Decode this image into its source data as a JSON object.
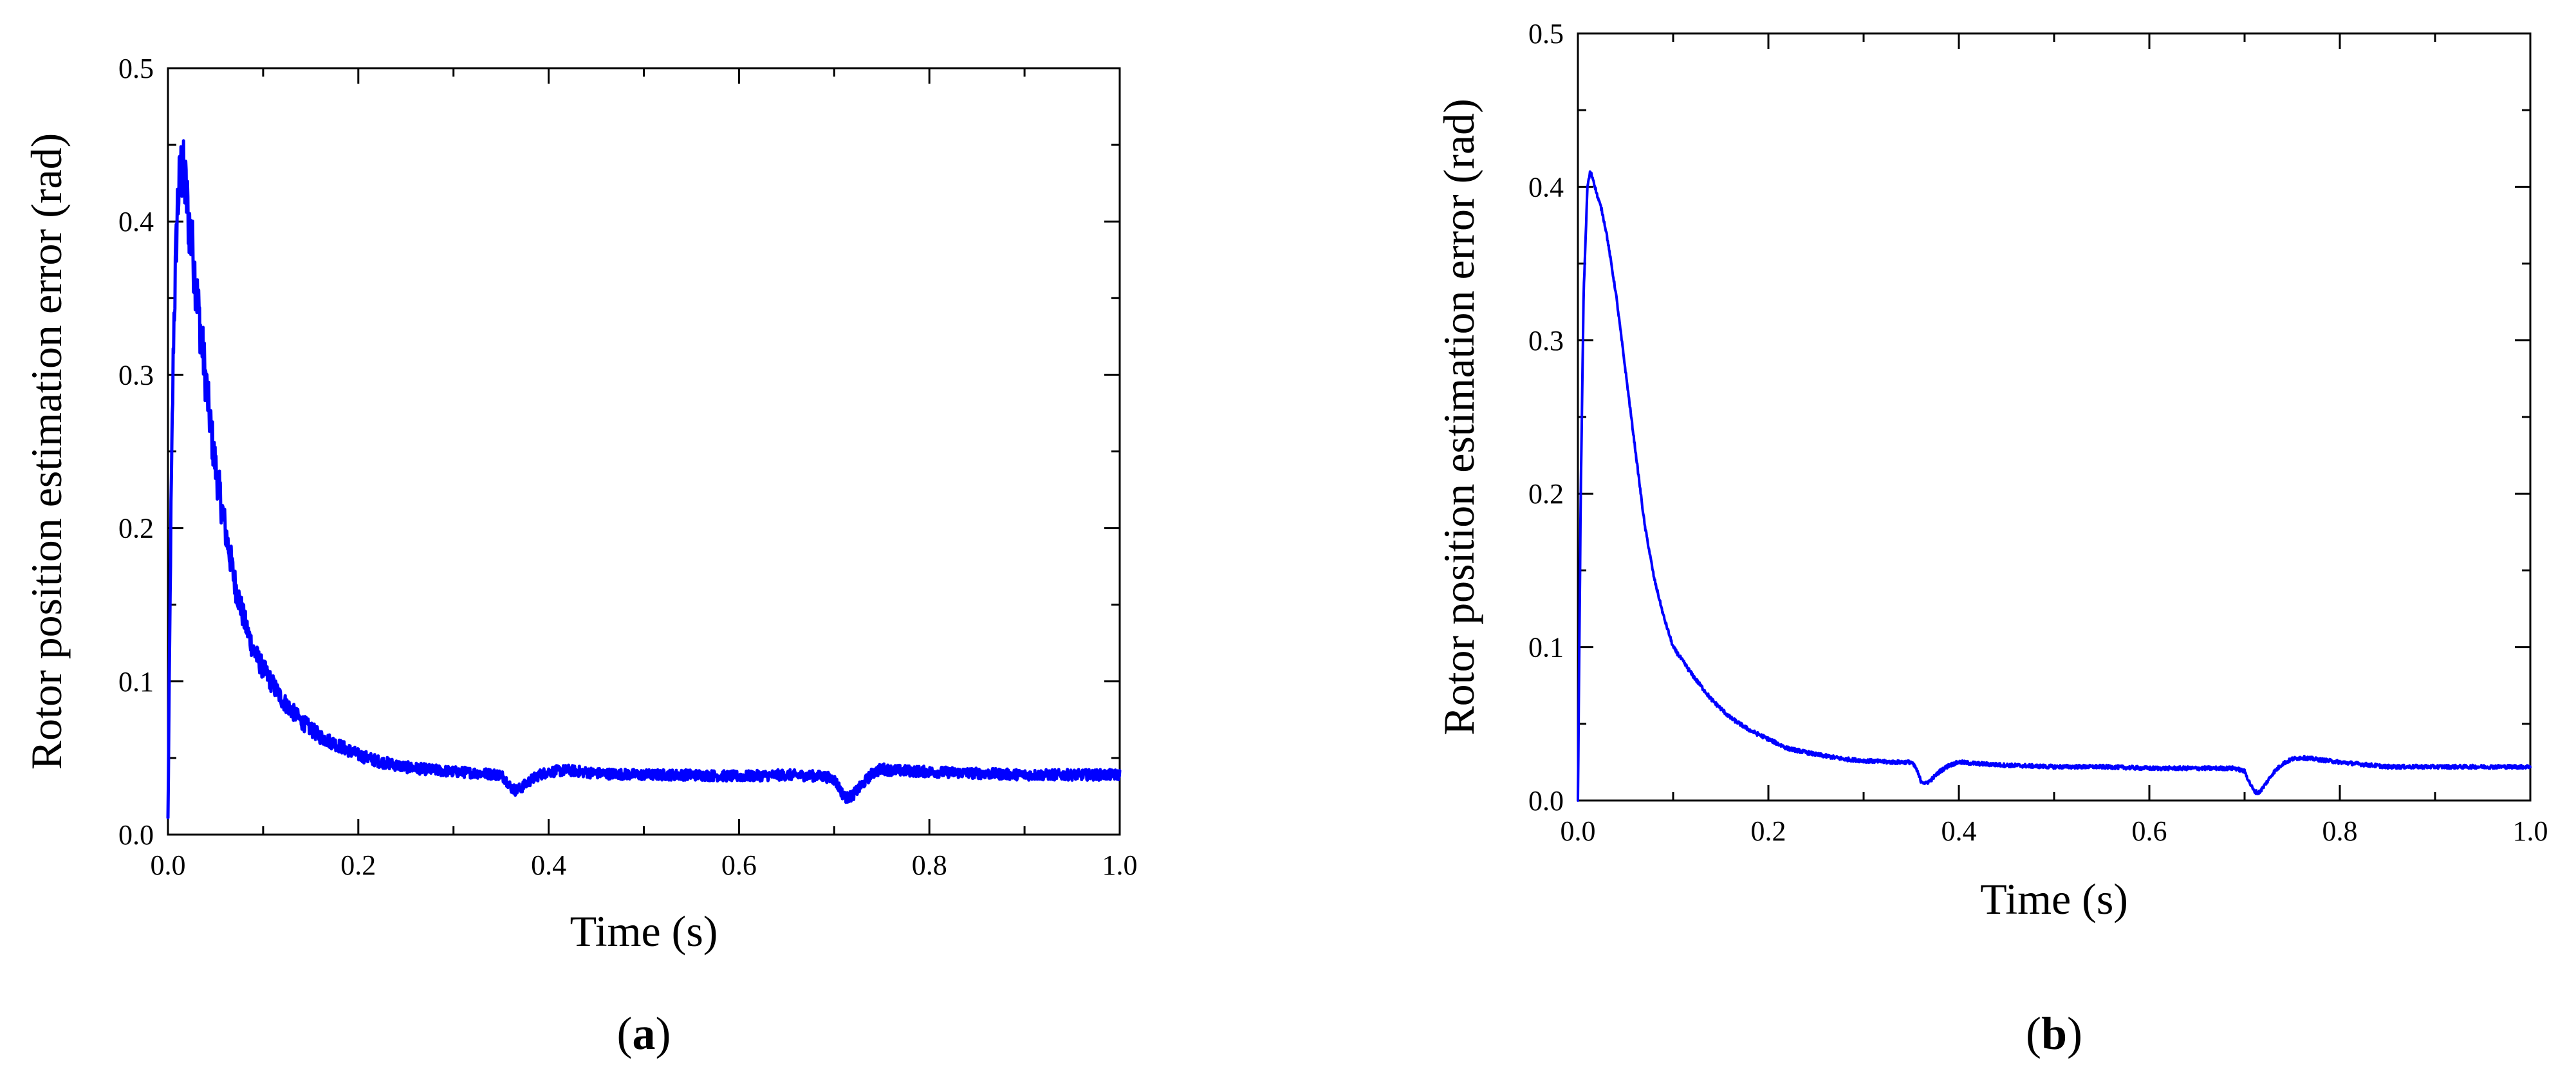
{
  "chart_data": [
    {
      "type": "line",
      "panel_label": "a",
      "xlabel": "Time (s)",
      "ylabel": "Rotor position estimation error (rad)",
      "xlim": [
        0,
        1.0
      ],
      "ylim": [
        0,
        0.5
      ],
      "xticks": [
        "0.0",
        "0.2",
        "0.4",
        "0.6",
        "0.8",
        "1.0"
      ],
      "yticks": [
        "0.0",
        "0.1",
        "0.2",
        "0.3",
        "0.4",
        "0.5"
      ],
      "grid": false,
      "line_color": "#0000ff",
      "noise_level": "high",
      "series": [
        {
          "x": [
            0,
            0.003,
            0.006,
            0.01,
            0.014,
            0.018,
            0.022,
            0.026,
            0.03,
            0.035,
            0.04,
            0.045,
            0.05,
            0.06,
            0.07,
            0.08,
            0.09,
            0.1,
            0.12,
            0.14,
            0.16,
            0.18,
            0.2,
            0.22,
            0.25,
            0.28,
            0.3,
            0.33,
            0.35,
            0.355,
            0.36,
            0.365,
            0.37,
            0.38,
            0.39,
            0.4,
            0.42,
            0.45,
            0.5,
            0.55,
            0.6,
            0.65,
            0.69,
            0.7,
            0.705,
            0.71,
            0.715,
            0.72,
            0.73,
            0.74,
            0.75,
            0.76,
            0.8,
            0.85,
            0.9,
            0.95,
            1.0
          ],
          "y": [
            0.01,
            0.2,
            0.33,
            0.41,
            0.435,
            0.425,
            0.4,
            0.38,
            0.355,
            0.325,
            0.295,
            0.265,
            0.24,
            0.2,
            0.165,
            0.14,
            0.12,
            0.108,
            0.088,
            0.074,
            0.064,
            0.058,
            0.052,
            0.048,
            0.044,
            0.042,
            0.041,
            0.04,
            0.039,
            0.036,
            0.031,
            0.029,
            0.03,
            0.035,
            0.039,
            0.041,
            0.042,
            0.04,
            0.039,
            0.039,
            0.038,
            0.039,
            0.038,
            0.036,
            0.031,
            0.025,
            0.024,
            0.026,
            0.033,
            0.04,
            0.043,
            0.042,
            0.041,
            0.04,
            0.039,
            0.039,
            0.039
          ]
        }
      ]
    },
    {
      "type": "line",
      "panel_label": "b",
      "xlabel": "Time (s)",
      "ylabel": "Rotor position estimation error (rad)",
      "xlim": [
        0,
        1.0
      ],
      "ylim": [
        0,
        0.5
      ],
      "xticks": [
        "0.0",
        "0.2",
        "0.4",
        "0.6",
        "0.8",
        "1.0"
      ],
      "yticks": [
        "0.0",
        "0.1",
        "0.2",
        "0.3",
        "0.4",
        "0.5"
      ],
      "grid": false,
      "line_color": "#0000ff",
      "noise_level": "low",
      "series": [
        {
          "x": [
            0,
            0.003,
            0.006,
            0.01,
            0.013,
            0.016,
            0.02,
            0.025,
            0.03,
            0.035,
            0.04,
            0.045,
            0.05,
            0.06,
            0.07,
            0.08,
            0.09,
            0.1,
            0.12,
            0.14,
            0.16,
            0.18,
            0.2,
            0.22,
            0.25,
            0.28,
            0.3,
            0.33,
            0.35,
            0.355,
            0.36,
            0.365,
            0.37,
            0.38,
            0.39,
            0.4,
            0.42,
            0.45,
            0.5,
            0.55,
            0.6,
            0.65,
            0.69,
            0.7,
            0.705,
            0.71,
            0.715,
            0.72,
            0.73,
            0.74,
            0.75,
            0.76,
            0.8,
            0.85,
            0.9,
            0.95,
            1.0
          ],
          "y": [
            0.0,
            0.2,
            0.33,
            0.4,
            0.41,
            0.405,
            0.395,
            0.385,
            0.37,
            0.35,
            0.33,
            0.305,
            0.28,
            0.23,
            0.18,
            0.145,
            0.12,
            0.1,
            0.082,
            0.066,
            0.054,
            0.046,
            0.04,
            0.034,
            0.03,
            0.027,
            0.026,
            0.025,
            0.025,
            0.021,
            0.013,
            0.011,
            0.013,
            0.019,
            0.023,
            0.025,
            0.024,
            0.023,
            0.022,
            0.022,
            0.021,
            0.021,
            0.021,
            0.019,
            0.012,
            0.006,
            0.005,
            0.009,
            0.018,
            0.024,
            0.027,
            0.028,
            0.025,
            0.022,
            0.022,
            0.022,
            0.022
          ]
        }
      ]
    }
  ]
}
